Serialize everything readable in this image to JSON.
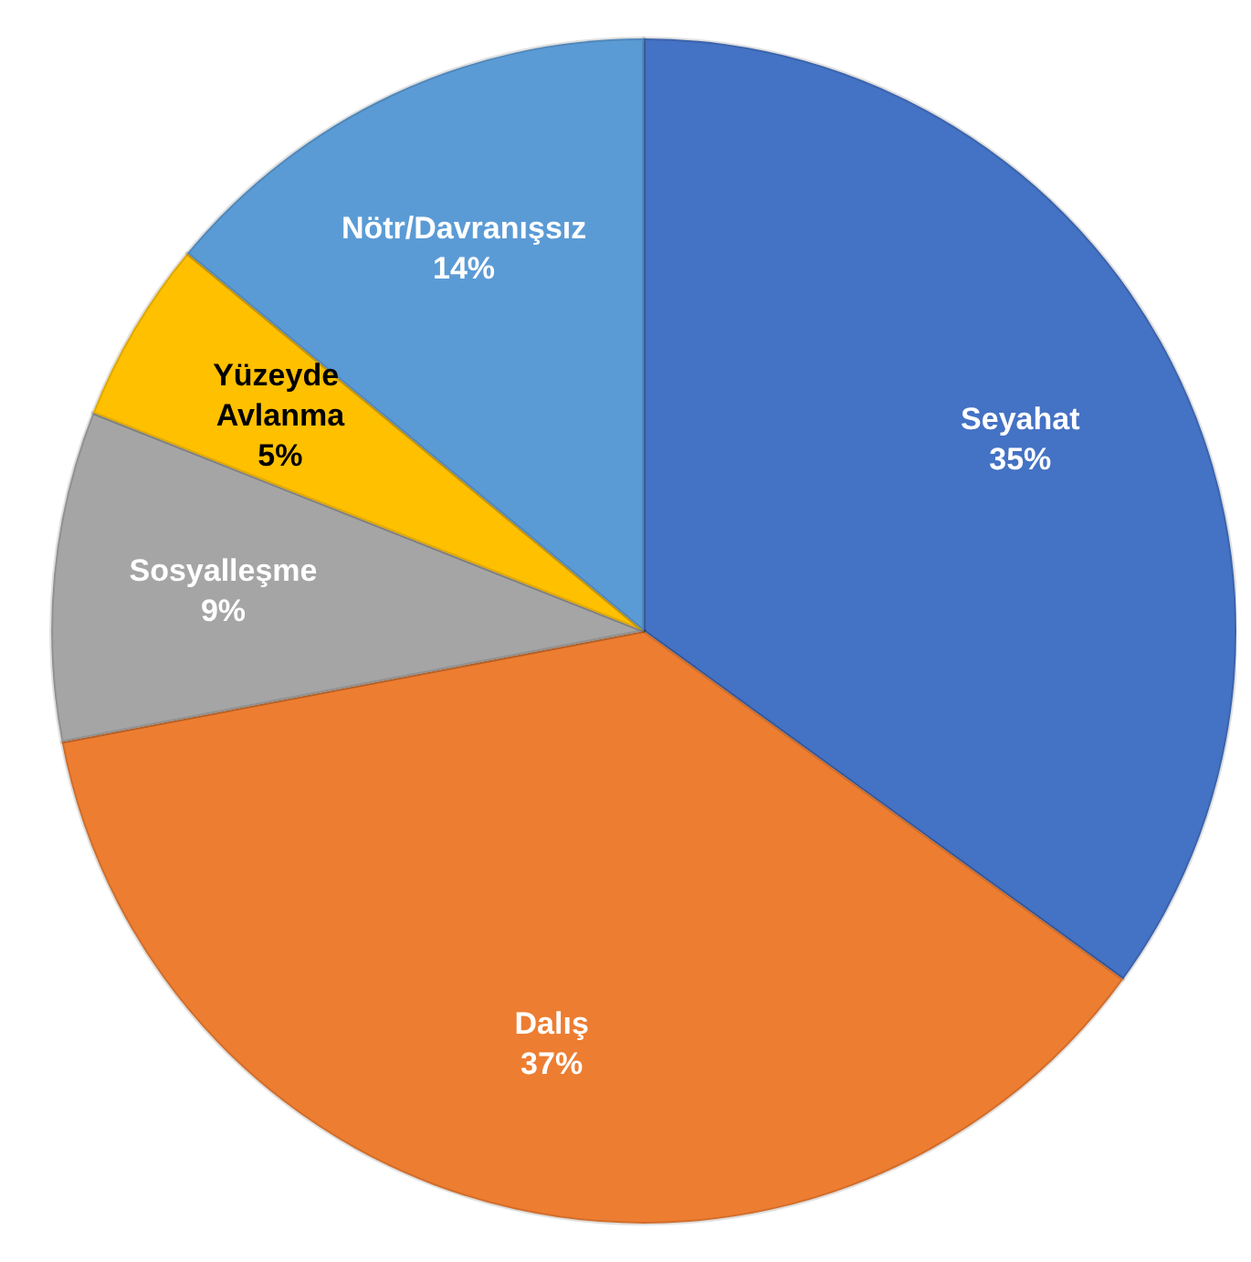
{
  "chart_data": {
    "type": "pie",
    "categories": [
      "Seyahat",
      "Dalış",
      "Sosyalleşme",
      "Yüzeyde Avlanma",
      "Nötr/Davranışsız"
    ],
    "values": [
      35,
      37,
      9,
      5,
      14
    ],
    "colors": [
      "#4472c4",
      "#ed7d31",
      "#a5a5a5",
      "#ffc000",
      "#5b9bd5"
    ],
    "value_labels": [
      "35%",
      "37%",
      "9%",
      "5%",
      "14%"
    ],
    "legend": false
  }
}
